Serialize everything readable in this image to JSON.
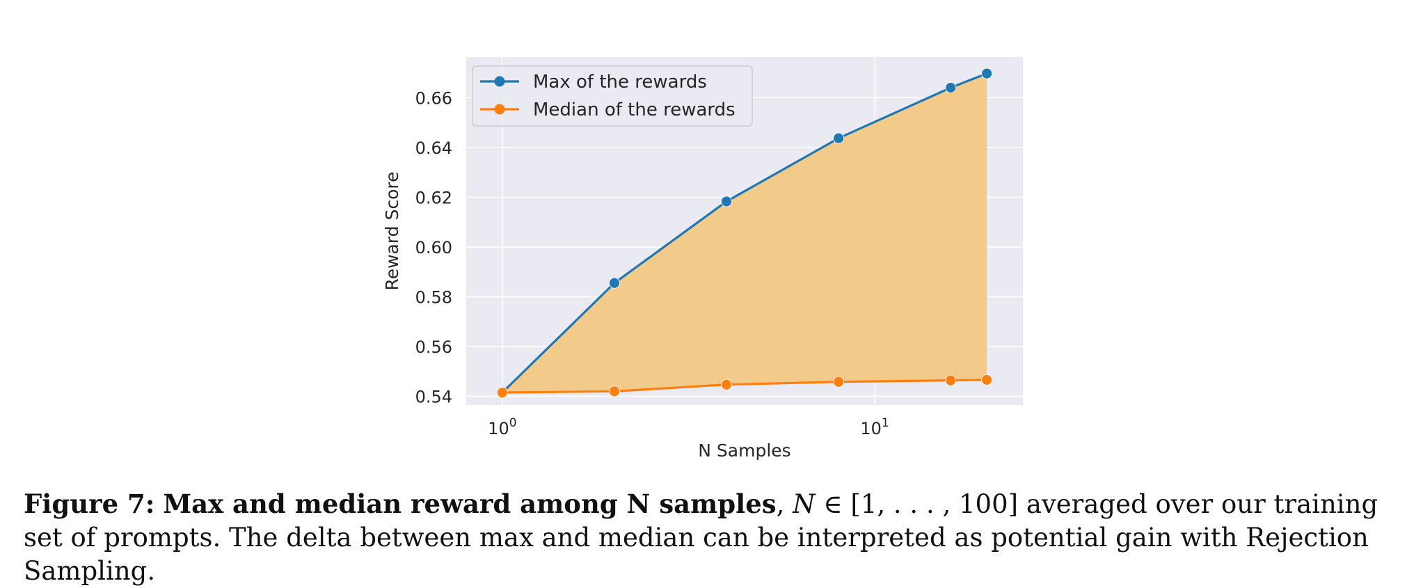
{
  "chart_data": {
    "type": "area",
    "xscale": "log",
    "x": [
      1,
      2,
      4,
      8,
      16,
      20
    ],
    "series": [
      {
        "name": "Max of the rewards",
        "values": [
          0.5415,
          0.5855,
          0.6183,
          0.6437,
          0.664,
          0.6697
        ],
        "color": "#1f77b4"
      },
      {
        "name": "Median of the rewards",
        "values": [
          0.5415,
          0.542,
          0.5447,
          0.5458,
          0.5464,
          0.5466
        ],
        "color": "#ff7f0e"
      }
    ],
    "fill_between": {
      "upper": "Max of the rewards",
      "lower": "Median of the rewards",
      "color": "#f2ca8a"
    },
    "xlabel": "N Samples",
    "ylabel": "Reward Score",
    "xlim": [
      0.8,
      25
    ],
    "ylim": [
      0.5365,
      0.6763
    ],
    "yticks": [
      "0.54",
      "0.56",
      "0.58",
      "0.60",
      "0.62",
      "0.64",
      "0.66"
    ],
    "xticks": [
      {
        "value": 1,
        "base": "10",
        "exp": "0"
      },
      {
        "value": 10,
        "base": "10",
        "exp": "1"
      }
    ],
    "legend": "top-left",
    "grid": true,
    "plot_bg": "#eaeaf2"
  },
  "caption": {
    "label": "Figure 7:",
    "bold_text": "Max and median reward among N samples",
    "math_n": "N",
    "math_set": "∈ [1, . . . , 100]",
    "text": "averaged over our training set of prompts. The delta between max and median can be interpreted as potential gain with Rejection Sampling."
  }
}
